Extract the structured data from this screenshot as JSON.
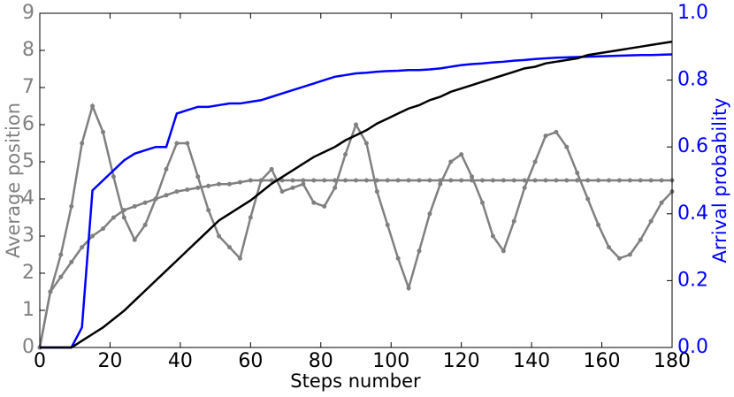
{
  "chart_data": {
    "type": "line",
    "xlabel": "Steps number",
    "ylabel": "Average position",
    "y2label": "Arrival probability",
    "xlim": [
      0,
      180
    ],
    "xticks": [
      0,
      20,
      40,
      60,
      80,
      100,
      120,
      140,
      160,
      180
    ],
    "ylim": [
      0,
      9
    ],
    "yticks": [
      0,
      1,
      2,
      3,
      4,
      5,
      6,
      7,
      8,
      9
    ],
    "y2lim": [
      0,
      1
    ],
    "y2ticks": [
      {
        "value": 0,
        "label": "0.0"
      },
      0.2,
      0.4,
      0.6,
      0.8,
      {
        "value": 1,
        "label": "1.0"
      }
    ],
    "ycolor": "#808080",
    "y2color": "#0000ff",
    "x": [
      0,
      3,
      6,
      9,
      12,
      15,
      18,
      21,
      24,
      27,
      30,
      33,
      36,
      39,
      42,
      45,
      48,
      51,
      54,
      57,
      60,
      63,
      66,
      69,
      72,
      75,
      78,
      81,
      84,
      87,
      90,
      93,
      96,
      99,
      102,
      105,
      108,
      111,
      114,
      117,
      120,
      123,
      126,
      129,
      132,
      135,
      138,
      141,
      144,
      147,
      150,
      153,
      156,
      159,
      162,
      165,
      168,
      171,
      174,
      177,
      180
    ],
    "series": [
      {
        "color": "#808080",
        "marker": true,
        "values": [
          0,
          1.5,
          2.5,
          3.8,
          5.5,
          6.5,
          5.8,
          4.6,
          3.5,
          2.9,
          3.3,
          4.0,
          4.8,
          5.5,
          5.5,
          4.6,
          3.7,
          3.0,
          2.7,
          2.4,
          3.5,
          4.5,
          4.8,
          4.2,
          4.3,
          4.4,
          3.9,
          3.8,
          4.3,
          5.2,
          6.0,
          5.5,
          4.2,
          3.3,
          2.4,
          1.6,
          2.6,
          3.6,
          4.4,
          5.0,
          5.2,
          4.6,
          3.9,
          3.0,
          2.6,
          3.4,
          4.3,
          5.0,
          5.7,
          5.8,
          5.4,
          4.7,
          4.0,
          3.3,
          2.7,
          2.4,
          2.5,
          2.9,
          3.4,
          3.9,
          4.2
        ]
      },
      {
        "color": "#808080",
        "marker": true,
        "values": [
          0,
          1.5,
          1.9,
          2.3,
          2.7,
          3.0,
          3.2,
          3.5,
          3.7,
          3.8,
          3.9,
          4.0,
          4.1,
          4.2,
          4.25,
          4.3,
          4.35,
          4.4,
          4.4,
          4.45,
          4.5,
          4.5,
          4.5,
          4.5,
          4.5,
          4.5,
          4.5,
          4.5,
          4.5,
          4.5,
          4.5,
          4.5,
          4.5,
          4.5,
          4.5,
          4.5,
          4.5,
          4.5,
          4.5,
          4.5,
          4.5,
          4.5,
          4.5,
          4.5,
          4.5,
          4.5,
          4.5,
          4.5,
          4.5,
          4.5,
          4.5,
          4.5,
          4.5,
          4.5,
          4.5,
          4.5,
          4.5,
          4.5,
          4.5,
          4.5,
          4.5
        ]
      },
      {
        "color": "#0000ff",
        "axis": "y2",
        "values": [
          0,
          0,
          0,
          0,
          0.06,
          0.47,
          0.5,
          0.53,
          0.56,
          0.58,
          0.59,
          0.6,
          0.6,
          0.7,
          0.71,
          0.72,
          0.72,
          0.725,
          0.73,
          0.73,
          0.735,
          0.74,
          0.75,
          0.76,
          0.77,
          0.78,
          0.79,
          0.8,
          0.81,
          0.815,
          0.82,
          0.822,
          0.825,
          0.827,
          0.828,
          0.83,
          0.83,
          0.832,
          0.835,
          0.84,
          0.845,
          0.848,
          0.85,
          0.853,
          0.855,
          0.858,
          0.86,
          0.863,
          0.865,
          0.867,
          0.868,
          0.869,
          0.87,
          0.871,
          0.872,
          0.873,
          0.874,
          0.875,
          0.875,
          0.876,
          0.877
        ]
      },
      {
        "color": "#000000",
        "axis": "y2",
        "values": [
          0,
          0,
          0,
          0,
          0.02,
          0.04,
          0.06,
          0.085,
          0.11,
          0.14,
          0.17,
          0.2,
          0.23,
          0.26,
          0.29,
          0.32,
          0.35,
          0.38,
          0.4,
          0.42,
          0.44,
          0.465,
          0.49,
          0.51,
          0.53,
          0.55,
          0.57,
          0.585,
          0.6,
          0.62,
          0.635,
          0.65,
          0.67,
          0.685,
          0.7,
          0.715,
          0.725,
          0.74,
          0.75,
          0.765,
          0.775,
          0.785,
          0.795,
          0.805,
          0.815,
          0.825,
          0.835,
          0.84,
          0.85,
          0.855,
          0.86,
          0.865,
          0.875,
          0.88,
          0.885,
          0.89,
          0.895,
          0.9,
          0.905,
          0.91,
          0.915
        ]
      }
    ]
  }
}
